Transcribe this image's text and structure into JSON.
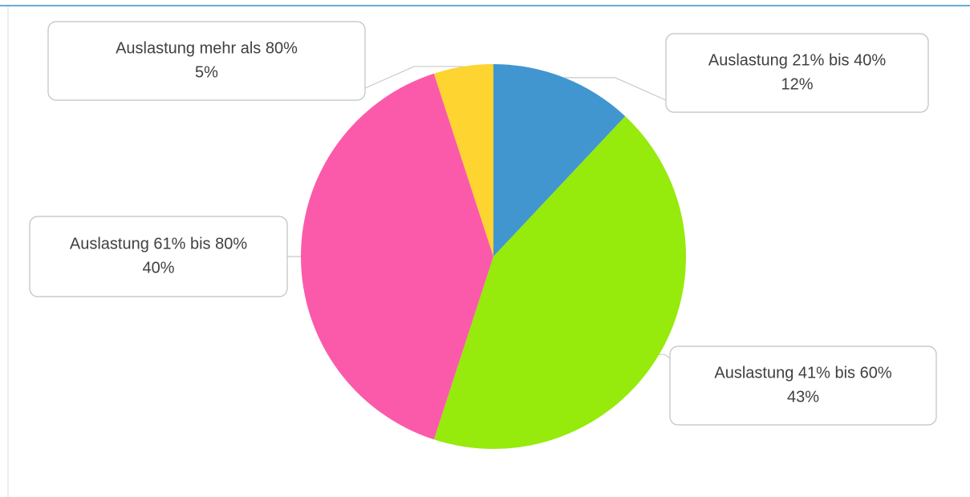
{
  "chart_data": {
    "type": "pie",
    "categories": [
      "Auslastung 21% bis 40%",
      "Auslastung 41% bis 60%",
      "Auslastung 61% bis 80%",
      "Auslastung mehr als 80%"
    ],
    "values": [
      12,
      43,
      40,
      5
    ],
    "value_labels": [
      "12%",
      "43%",
      "40%",
      "5%"
    ],
    "colors": [
      "#4196d0",
      "#96ea0c",
      "#fb5aaa",
      "#fdd430"
    ]
  }
}
